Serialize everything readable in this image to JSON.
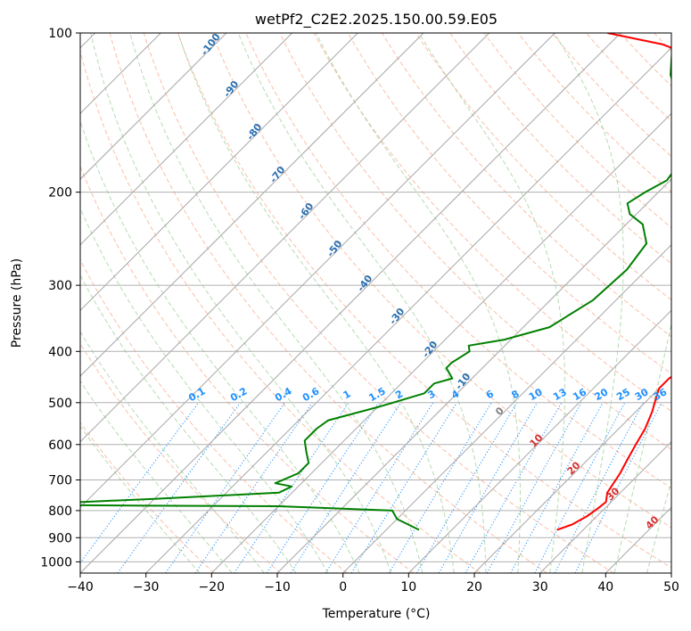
{
  "chart_data": {
    "type": "skew-t",
    "title": "wetPf2_C2E2.2025.150.00.59.E05",
    "xlabel": "Temperature (°C)",
    "ylabel": "Pressure (hPa)",
    "xlim": [
      -40,
      50
    ],
    "ylim": [
      1050,
      100
    ],
    "y_scale": "log",
    "x_ticks": [
      -40,
      -30,
      -20,
      -10,
      0,
      10,
      20,
      30,
      40,
      50
    ],
    "x_tick_labels": [
      "−40",
      "−30",
      "−20",
      "−10",
      "0",
      "10",
      "20",
      "30",
      "40",
      "50"
    ],
    "y_ticks": [
      100,
      200,
      300,
      400,
      500,
      600,
      700,
      800,
      900,
      1000
    ],
    "y_tick_labels": [
      "100",
      "200",
      "300",
      "400",
      "500",
      "600",
      "700",
      "800",
      "900",
      "1000"
    ],
    "grid": true,
    "series": [
      {
        "color": "#ff0000",
        "x": [
          26.0,
          27.5,
          28.5,
          29.0,
          29.2,
          28.0,
          27.0,
          26.0,
          25.0,
          24.0,
          22.5,
          21.0,
          20.0,
          20.0,
          21.0,
          21.5,
          20.5,
          18.5,
          15.5,
          12.5,
          9.0,
          5.0,
          2.0,
          -1.0,
          -2.5,
          -4.0,
          -4.5,
          -5.5,
          -9.0,
          -13.0,
          -18.0,
          -26.0,
          -32.0,
          -42.0
        ],
        "y": [
          870,
          850,
          820,
          790,
          770,
          740,
          680,
          640,
          600,
          560,
          520,
          490,
          470,
          450,
          430,
          410,
          380,
          350,
          320,
          290,
          260,
          230,
          210,
          200,
          190,
          180,
          170,
          160,
          145,
          130,
          120,
          110,
          105,
          100
        ]
      },
      {
        "color": "#008000",
        "x": [
          5.0,
          0.0,
          -2.0,
          -20.0,
          -40.0,
          -60.0,
          -40.0,
          -22.0,
          -21.0,
          -24.0,
          -22.0,
          -22.0,
          -24.0,
          -26.0,
          -26.0,
          -25.5,
          -20.0,
          -15.0,
          -15.0,
          -13.0,
          -15.5,
          -15.5,
          -14.5,
          -15.5,
          -11.0,
          -6.0,
          -3.5,
          -3.0,
          -4.0,
          -7.5,
          -11.0,
          -13.0,
          -12.0,
          -10.5,
          -11.0,
          -15.0,
          -19.0,
          -26.0,
          -32.0
        ],
        "y": [
          870,
          830,
          800,
          785,
          783,
          780,
          760,
          740,
          720,
          710,
          680,
          650,
          620,
          590,
          560,
          540,
          510,
          480,
          460,
          450,
          430,
          420,
          400,
          390,
          380,
          360,
          320,
          280,
          250,
          230,
          220,
          210,
          200,
          190,
          180,
          160,
          140,
          120,
          100
        ]
      }
    ],
    "labels": {
      "dry_adiabats": [
        -100,
        -90,
        -80,
        -70,
        -60,
        -50,
        -40,
        -30,
        -20,
        -10
      ],
      "moist_adiabats": [
        0,
        10,
        20,
        30,
        40
      ],
      "mixing_ratios": [
        "0.1",
        "0.2",
        "0.4",
        "0.6",
        "1",
        "1.5",
        "2",
        "3",
        "4",
        "6",
        "8",
        "10",
        "13",
        "16",
        "20",
        "25",
        "30",
        "36"
      ]
    }
  }
}
